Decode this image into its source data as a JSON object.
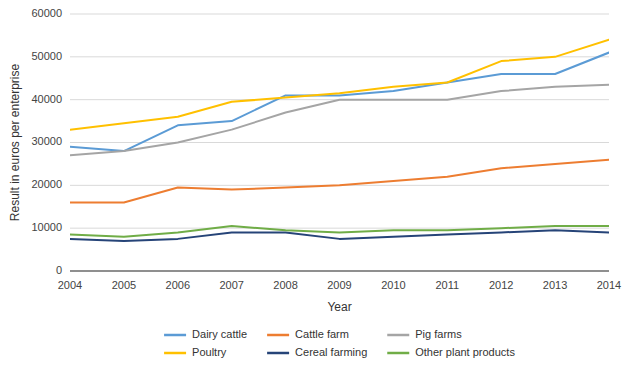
{
  "chart_data": {
    "type": "line",
    "xlabel": "Year",
    "ylabel": "Result in euros per enterprise",
    "x": [
      2004,
      2005,
      2006,
      2007,
      2008,
      2009,
      2010,
      2011,
      2012,
      2013,
      2014
    ],
    "xlim": [
      2004,
      2014
    ],
    "xticks": [
      2004,
      2005,
      2006,
      2007,
      2008,
      2009,
      2010,
      2011,
      2012,
      2013,
      2014
    ],
    "ylim": [
      0,
      60000
    ],
    "yticks": [
      0,
      10000,
      20000,
      30000,
      40000,
      50000,
      60000
    ],
    "grid": true,
    "legend": "bottom",
    "series": [
      {
        "name": "Dairy cattle",
        "color": "#5B9BD5",
        "values": [
          29000,
          28000,
          34000,
          35000,
          41000,
          41000,
          42000,
          44000,
          46000,
          46000,
          51000
        ]
      },
      {
        "name": "Cattle farm",
        "color": "#ED7D31",
        "values": [
          16000,
          16000,
          19500,
          19000,
          19500,
          20000,
          21000,
          22000,
          24000,
          25000,
          26000
        ]
      },
      {
        "name": "Pig farms",
        "color": "#A5A5A5",
        "values": [
          27000,
          28000,
          30000,
          33000,
          37000,
          40000,
          40000,
          40000,
          42000,
          43000,
          43500
        ]
      },
      {
        "name": "Poultry",
        "color": "#FFC000",
        "values": [
          33000,
          34500,
          36000,
          39500,
          40500,
          41500,
          43000,
          44000,
          49000,
          50000,
          54000
        ]
      },
      {
        "name": "Cereal farming",
        "color": "#264478",
        "values": [
          7500,
          7000,
          7500,
          9000,
          9000,
          7500,
          8000,
          8500,
          9000,
          9500,
          9000
        ]
      },
      {
        "name": "Other plant products",
        "color": "#70AD47",
        "values": [
          8500,
          8000,
          9000,
          10500,
          9500,
          9000,
          9500,
          9500,
          10000,
          10500,
          10500
        ]
      }
    ]
  }
}
